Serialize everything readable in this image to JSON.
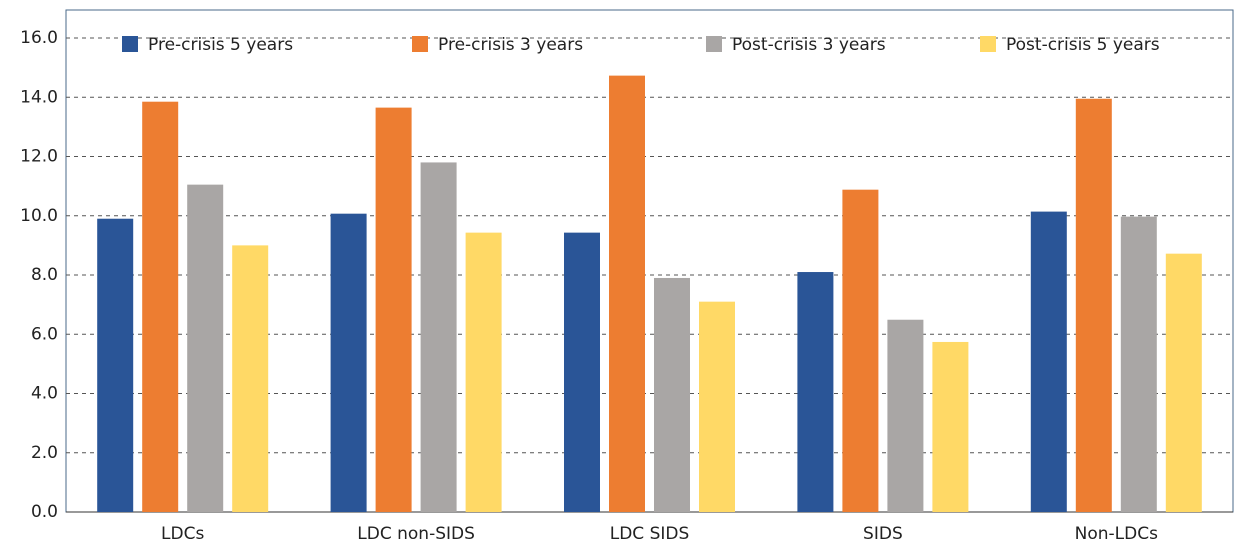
{
  "chart_data": {
    "type": "bar",
    "categories": [
      "LDCs",
      "LDC non-SIDS",
      "LDC SIDS",
      "SIDS",
      "Non-LDCs"
    ],
    "series": [
      {
        "name": "Pre-crisis 5 years",
        "color": "#2a5597",
        "values": [
          9.9,
          10.07,
          9.43,
          8.1,
          10.14
        ]
      },
      {
        "name": "Pre-crisis 3 years",
        "color": "#ed7d31",
        "values": [
          13.85,
          13.65,
          14.73,
          10.88,
          13.95
        ]
      },
      {
        "name": "Post-crisis 3 years",
        "color": "#a9a6a5",
        "values": [
          11.05,
          11.8,
          7.9,
          6.49,
          9.97
        ]
      },
      {
        "name": "Post-crisis 5 years",
        "color": "#ffd966",
        "values": [
          9.0,
          9.43,
          7.1,
          5.74,
          8.72
        ]
      }
    ],
    "ylim": [
      0,
      16
    ],
    "yticks": [
      {
        "value": 0,
        "label": "0.0"
      },
      {
        "value": 2,
        "label": "2.0"
      },
      {
        "value": 4,
        "label": "4.0"
      },
      {
        "value": 6,
        "label": "6.0"
      },
      {
        "value": 8,
        "label": "8.0"
      },
      {
        "value": 10,
        "label": "10.0"
      },
      {
        "value": 12,
        "label": "12.0"
      },
      {
        "value": 14,
        "label": "14.0"
      },
      {
        "value": 16,
        "label": "16.0"
      }
    ],
    "grid": true,
    "legend": "top"
  }
}
